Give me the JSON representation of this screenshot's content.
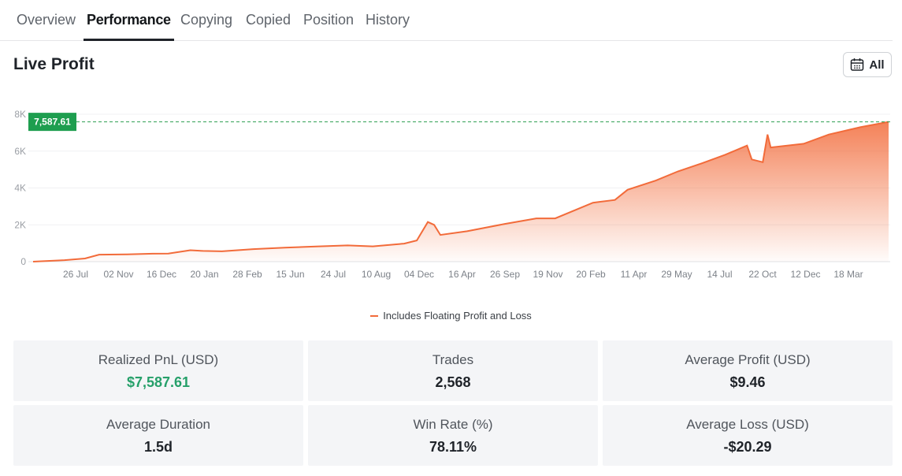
{
  "tabs": [
    {
      "label": "Overview"
    },
    {
      "label": "Performance"
    },
    {
      "label": "Copying"
    },
    {
      "label": "Copied"
    },
    {
      "label": "Position"
    },
    {
      "label": "History"
    }
  ],
  "active_tab": "Performance",
  "section_title": "Live Profit",
  "range_button": {
    "label": "All",
    "icon": "calendar-icon"
  },
  "current_value_tag": "7,587.61",
  "colors": {
    "line": "#f26b3a",
    "positive": "#26a06a",
    "tag_bg": "#1e9e4f"
  },
  "chart_data": {
    "type": "area",
    "title": "",
    "xlabel": "",
    "ylabel": "",
    "yticks": [
      "0",
      "2K",
      "4K",
      "6K",
      "8K"
    ],
    "ylim": [
      0,
      8000
    ],
    "grid": true,
    "xticks": [
      "26 Jul",
      "02 Nov",
      "16 Dec",
      "20 Jan",
      "28 Feb",
      "15 Jun",
      "24 Jul",
      "10 Aug",
      "04 Dec",
      "16 Apr",
      "26 Sep",
      "19 Nov",
      "20 Feb",
      "11 Apr",
      "29 May",
      "14 Jul",
      "22 Oct",
      "12 Dec",
      "18 Mar"
    ],
    "series": [
      {
        "name": "Includes Floating Profit and Loss",
        "values": [
          {
            "x": 0,
            "y": 0
          },
          {
            "x": 1.0,
            "y": 80
          },
          {
            "x": 1.65,
            "y": 170
          },
          {
            "x": 2.1,
            "y": 380
          },
          {
            "x": 3.0,
            "y": 400
          },
          {
            "x": 3.8,
            "y": 430
          },
          {
            "x": 4.3,
            "y": 440
          },
          {
            "x": 5.0,
            "y": 620
          },
          {
            "x": 5.4,
            "y": 580
          },
          {
            "x": 6.0,
            "y": 560
          },
          {
            "x": 7.0,
            "y": 680
          },
          {
            "x": 8.0,
            "y": 760
          },
          {
            "x": 9.0,
            "y": 820
          },
          {
            "x": 10.0,
            "y": 880
          },
          {
            "x": 10.8,
            "y": 830
          },
          {
            "x": 11.8,
            "y": 980
          },
          {
            "x": 12.2,
            "y": 1150
          },
          {
            "x": 12.55,
            "y": 2150
          },
          {
            "x": 12.75,
            "y": 2000
          },
          {
            "x": 12.95,
            "y": 1450
          },
          {
            "x": 13.8,
            "y": 1650
          },
          {
            "x": 15.0,
            "y": 2050
          },
          {
            "x": 16.0,
            "y": 2350
          },
          {
            "x": 16.6,
            "y": 2350
          },
          {
            "x": 17.8,
            "y": 3200
          },
          {
            "x": 18.5,
            "y": 3350
          },
          {
            "x": 18.9,
            "y": 3900
          },
          {
            "x": 19.8,
            "y": 4400
          },
          {
            "x": 20.5,
            "y": 4900
          },
          {
            "x": 21.2,
            "y": 5300
          },
          {
            "x": 22.0,
            "y": 5800
          },
          {
            "x": 22.7,
            "y": 6300
          },
          {
            "x": 22.85,
            "y": 5550
          },
          {
            "x": 23.2,
            "y": 5400
          },
          {
            "x": 23.35,
            "y": 6900
          },
          {
            "x": 23.45,
            "y": 6200
          },
          {
            "x": 24.5,
            "y": 6400
          },
          {
            "x": 25.3,
            "y": 6900
          },
          {
            "x": 26.3,
            "y": 7300
          },
          {
            "x": 27.2,
            "y": 7587.61
          }
        ]
      }
    ],
    "current_value": 7587.61
  },
  "stats": [
    {
      "label": "Realized PnL (USD)",
      "value": "$7,587.61",
      "positive": true
    },
    {
      "label": "Trades",
      "value": "2,568"
    },
    {
      "label": "Average Profit (USD)",
      "value": "$9.46"
    },
    {
      "label": "Average Duration",
      "value": "1.5d"
    },
    {
      "label": "Win Rate (%)",
      "value": "78.11%"
    },
    {
      "label": "Average Loss (USD)",
      "value": "-$20.29"
    }
  ]
}
